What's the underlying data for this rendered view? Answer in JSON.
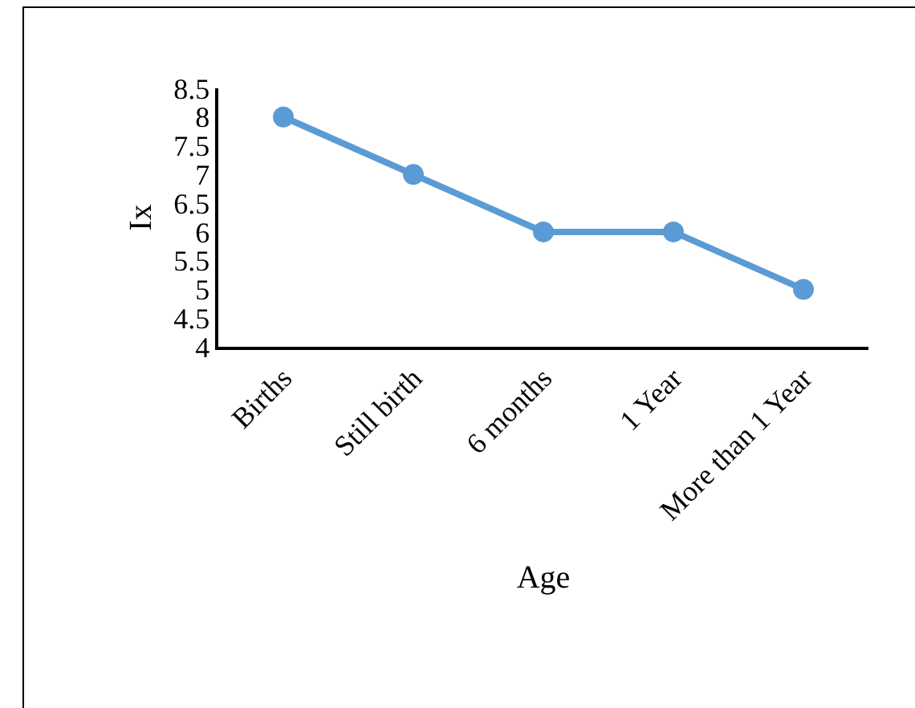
{
  "chart_data": {
    "type": "line",
    "xlabel": "Age",
    "ylabel": "Ix",
    "categories": [
      "Births",
      "Still birth",
      "6 months",
      "1 Year",
      "More than 1 Year"
    ],
    "series": [
      {
        "color": "#5b9bd5",
        "values": [
          8,
          7,
          6,
          6,
          5
        ]
      }
    ],
    "ylim": [
      4,
      8.5
    ],
    "yticks": [
      4,
      4.5,
      5,
      5.5,
      6,
      6.5,
      7,
      7.5,
      8,
      8.5
    ],
    "grid": false,
    "legend": false,
    "marker": "circle",
    "line_style": "solid"
  }
}
